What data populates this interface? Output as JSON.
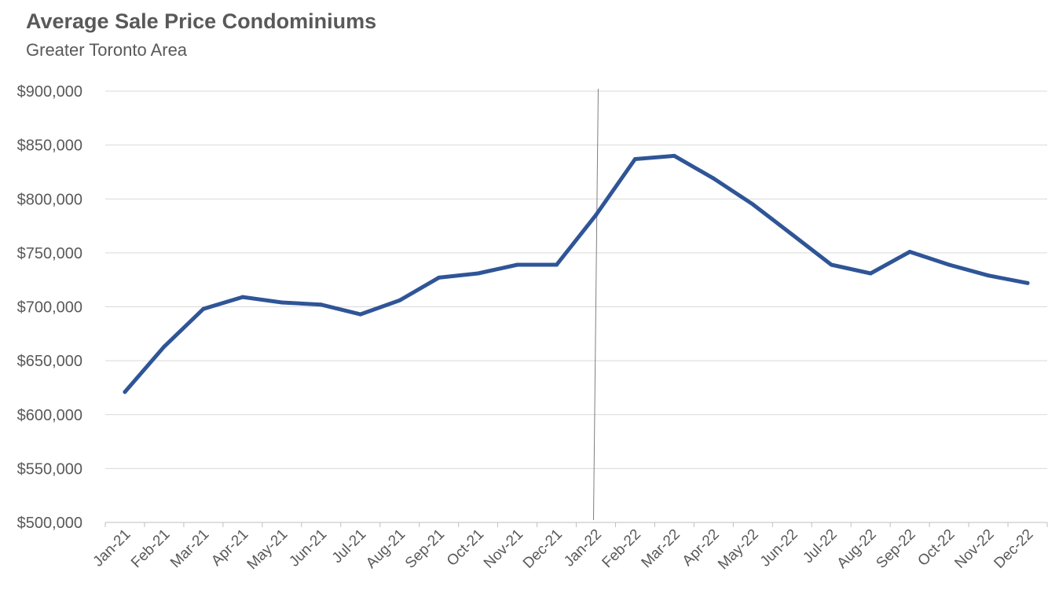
{
  "chart_data": {
    "type": "line",
    "title": "Average Sale Price Condominiums",
    "subtitle": "Greater Toronto Area",
    "xlabel": "",
    "ylabel": "",
    "ylim": [
      500000,
      900000
    ],
    "yticks": [
      500000,
      550000,
      600000,
      650000,
      700000,
      750000,
      800000,
      850000,
      900000
    ],
    "ytick_labels": [
      "$500,000",
      "$550,000",
      "$600,000",
      "$650,000",
      "$700,000",
      "$750,000",
      "$800,000",
      "$850,000",
      "$900,000"
    ],
    "grid": true,
    "categories": [
      "Jan-21",
      "Feb-21",
      "Mar-21",
      "Apr-21",
      "May-21",
      "Jun-21",
      "Jul-21",
      "Aug-21",
      "Sep-21",
      "Oct-21",
      "Nov-21",
      "Dec-21",
      "Jan-22",
      "Feb-22",
      "Mar-22",
      "Apr-22",
      "May-22",
      "Jun-22",
      "Jul-22",
      "Aug-22",
      "Sep-22",
      "Oct-22",
      "Nov-22",
      "Dec-22"
    ],
    "series": [
      {
        "name": "Average Sale Price",
        "color": "#2F5597",
        "values": [
          621000,
          663000,
          698000,
          709000,
          704000,
          702000,
          693000,
          706000,
          727000,
          731000,
          739000,
          739000,
          785000,
          837000,
          840000,
          819000,
          795000,
          767000,
          739000,
          731000,
          751000,
          739000,
          729000,
          722000
        ]
      }
    ],
    "annotation_line": {
      "category": "Jan-22",
      "color": "#7f7f7f"
    }
  }
}
